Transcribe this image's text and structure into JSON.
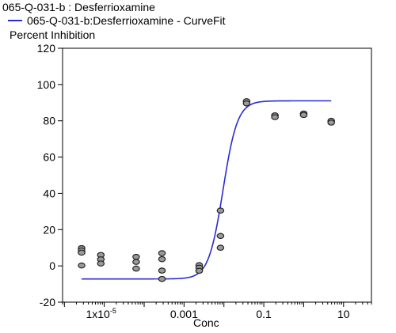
{
  "legend": {
    "title": "065-Q-031-b  : Desferrioxamine",
    "item": "065-Q-031-b:Desferrioxamine - CurveFit"
  },
  "colors": {
    "curve": "#2b2bd6",
    "point_fill": "#9a9a9a",
    "point_stroke": "#222222"
  },
  "chart_data": {
    "type": "scatter",
    "ylabel": "Percent Inhibition",
    "xlabel": "Conc",
    "x_scale": "log",
    "xlim": [
      9e-07,
      50
    ],
    "ylim": [
      -20,
      120
    ],
    "y_ticks": [
      -20,
      0,
      20,
      40,
      60,
      80,
      100,
      120
    ],
    "x_ticks": [
      {
        "value": 1e-05,
        "label": "1x10",
        "exp": "-5"
      },
      {
        "value": 0.001,
        "label": "0.001",
        "exp": ""
      },
      {
        "value": 0.1,
        "label": "0.1",
        "exp": ""
      },
      {
        "value": 10,
        "label": "10",
        "exp": ""
      }
    ],
    "legend_position": "top-left",
    "grid": false,
    "points": [
      {
        "x": 2.7e-06,
        "y": 9.8
      },
      {
        "x": 2.7e-06,
        "y": 8.5
      },
      {
        "x": 2.7e-06,
        "y": 7.3
      },
      {
        "x": 2.7e-06,
        "y": 0.2
      },
      {
        "x": 8.2e-06,
        "y": 6.0
      },
      {
        "x": 8.2e-06,
        "y": 3.6
      },
      {
        "x": 8.2e-06,
        "y": 1.3
      },
      {
        "x": 6.3e-05,
        "y": 5.0
      },
      {
        "x": 6.3e-05,
        "y": 2.2
      },
      {
        "x": 6.3e-05,
        "y": -1.5
      },
      {
        "x": 0.00028,
        "y": 7.0
      },
      {
        "x": 0.00028,
        "y": 3.7
      },
      {
        "x": 0.00028,
        "y": -2.6
      },
      {
        "x": 0.00028,
        "y": -7.2
      },
      {
        "x": 0.0024,
        "y": 0.4
      },
      {
        "x": 0.0024,
        "y": -1.0
      },
      {
        "x": 0.0024,
        "y": -2.7
      },
      {
        "x": 0.0082,
        "y": 30.5
      },
      {
        "x": 0.0082,
        "y": 16.5
      },
      {
        "x": 0.0082,
        "y": 10.0
      },
      {
        "x": 0.037,
        "y": 90.8
      },
      {
        "x": 0.037,
        "y": 89.6
      },
      {
        "x": 0.19,
        "y": 83.0
      },
      {
        "x": 0.19,
        "y": 82.0
      },
      {
        "x": 1.0,
        "y": 84.0
      },
      {
        "x": 1.0,
        "y": 83.2
      },
      {
        "x": 4.9,
        "y": 80.0
      },
      {
        "x": 4.9,
        "y": 79.0
      }
    ],
    "curve": {
      "bottom": -7.2,
      "top": 91.0,
      "ec50": 0.0095,
      "hill": 2.4,
      "x_range": [
        2.7e-06,
        4.9
      ]
    }
  }
}
